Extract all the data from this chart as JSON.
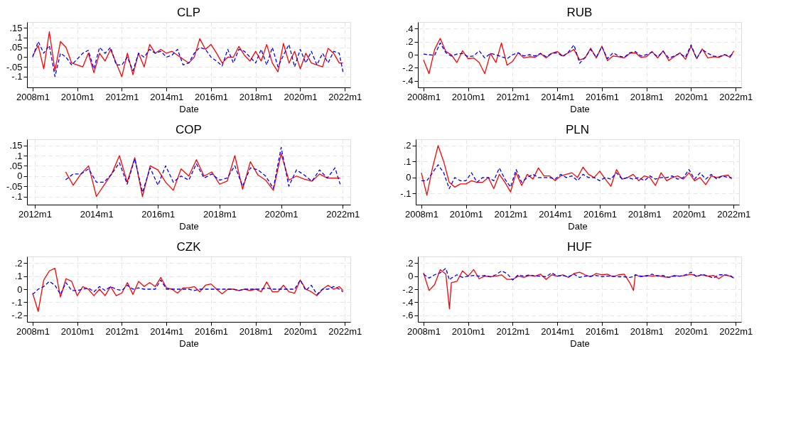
{
  "chart_data": [
    {
      "type": "line",
      "title": "CLP",
      "xlabel": "Date",
      "x": [
        "2008-01",
        "2008-04",
        "2008-07",
        "2008-10",
        "2009-01",
        "2009-04",
        "2009-07",
        "2009-10",
        "2010-01",
        "2010-04",
        "2010-07",
        "2010-10",
        "2011-01",
        "2011-04",
        "2011-07",
        "2011-10",
        "2012-01",
        "2012-04",
        "2012-07",
        "2012-10",
        "2013-01",
        "2013-04",
        "2013-07",
        "2013-10",
        "2014-01",
        "2014-04",
        "2014-07",
        "2014-10",
        "2015-01",
        "2015-04",
        "2015-07",
        "2015-10",
        "2016-01",
        "2016-04",
        "2016-07",
        "2016-10",
        "2017-01",
        "2017-04",
        "2017-07",
        "2017-10",
        "2018-01",
        "2018-04",
        "2018-07",
        "2018-10",
        "2019-01",
        "2019-04",
        "2019-07",
        "2019-10",
        "2020-01",
        "2020-04",
        "2020-07",
        "2020-10",
        "2021-01",
        "2021-04",
        "2021-07",
        "2021-10",
        "2021-12"
      ],
      "series": [
        {
          "color": "#ff0000",
          "line_style": "solid",
          "values": [
            0.005,
            0.06,
            -0.06,
            0.13,
            -0.07,
            0.08,
            0.05,
            -0.03,
            -0.04,
            -0.05,
            0.02,
            -0.08,
            0.02,
            -0.02,
            0.04,
            -0.03,
            -0.1,
            0.02,
            -0.09,
            0.02,
            -0.05,
            0.065,
            0.02,
            0.04,
            0.02,
            0.03,
            0.01,
            -0.01,
            -0.03,
            0.0,
            0.095,
            0.04,
            0.065,
            0.02,
            -0.03,
            0.0,
            0.0,
            0.055,
            0.01,
            -0.02,
            0.03,
            -0.02,
            0.065,
            -0.03,
            -0.075,
            0.07,
            -0.03,
            0.03,
            -0.06,
            0.02,
            -0.03,
            -0.04,
            -0.05,
            0.045,
            0.02,
            -0.03,
            -0.03
          ]
        },
        {
          "color": "#0000ff",
          "line_style": "dashed",
          "values": [
            0.0,
            0.08,
            0.02,
            0.06,
            -0.1,
            0.02,
            0.0,
            -0.04,
            -0.01,
            0.02,
            0.035,
            -0.06,
            0.05,
            0.02,
            0.05,
            -0.04,
            -0.04,
            0.0,
            -0.07,
            0.02,
            0.0,
            0.04,
            0.02,
            0.03,
            0.0,
            0.01,
            0.04,
            -0.04,
            -0.03,
            0.02,
            0.05,
            0.04,
            0.0,
            -0.02,
            -0.045,
            0.04,
            -0.03,
            0.04,
            0.03,
            0.0,
            -0.03,
            0.04,
            -0.04,
            0.05,
            -0.05,
            0.01,
            0.065,
            -0.05,
            0.04,
            -0.03,
            0.03,
            -0.04,
            0.02,
            -0.03,
            0.03,
            0.02,
            -0.075
          ]
        }
      ],
      "xlim": [
        "2007-10",
        "2022-04"
      ],
      "ylim": [
        -0.155,
        0.18
      ],
      "xticks": [
        {
          "value": "2008-01",
          "label": "2008m1"
        },
        {
          "value": "2010-01",
          "label": "2010m1"
        },
        {
          "value": "2012-01",
          "label": "2012m1"
        },
        {
          "value": "2014-01",
          "label": "2014m1"
        },
        {
          "value": "2016-01",
          "label": "2016m1"
        },
        {
          "value": "2018-01",
          "label": "2018m1"
        },
        {
          "value": "2020-01",
          "label": "2020m1"
        },
        {
          "value": "2022-01",
          "label": "2022m1"
        }
      ],
      "yticks": [
        {
          "value": -0.1,
          "label": "-.1"
        },
        {
          "value": -0.05,
          "label": "-.05"
        },
        0,
        {
          "value": 0.05,
          "label": ".05"
        },
        {
          "value": 0.1,
          "label": ".1"
        },
        {
          "value": 0.15,
          "label": ".15"
        }
      ],
      "grid": true
    },
    {
      "type": "line",
      "title": "RUB",
      "xlabel": "Date",
      "x": [
        "2008-01",
        "2008-04",
        "2008-07",
        "2008-10",
        "2009-01",
        "2009-04",
        "2009-07",
        "2009-10",
        "2010-01",
        "2010-04",
        "2010-07",
        "2010-10",
        "2011-01",
        "2011-04",
        "2011-07",
        "2011-10",
        "2012-01",
        "2012-04",
        "2012-07",
        "2012-10",
        "2013-01",
        "2013-04",
        "2013-07",
        "2013-10",
        "2014-01",
        "2014-04",
        "2014-07",
        "2014-10",
        "2015-01",
        "2015-04",
        "2015-07",
        "2015-10",
        "2016-01",
        "2016-04",
        "2016-07",
        "2016-10",
        "2017-01",
        "2017-04",
        "2017-07",
        "2017-10",
        "2018-01",
        "2018-04",
        "2018-07",
        "2018-10",
        "2019-01",
        "2019-04",
        "2019-07",
        "2019-10",
        "2020-01",
        "2020-04",
        "2020-07",
        "2020-10",
        "2021-01",
        "2021-04",
        "2021-07",
        "2021-10",
        "2021-12"
      ],
      "series": [
        {
          "color": "#ff0000",
          "line_style": "solid",
          "values": [
            -0.08,
            -0.29,
            0.08,
            0.25,
            0.05,
            0.0,
            -0.12,
            0.06,
            -0.06,
            -0.05,
            -0.12,
            -0.29,
            0.02,
            -0.12,
            0.18,
            -0.16,
            -0.1,
            0.03,
            -0.05,
            -0.03,
            -0.04,
            0.02,
            -0.05,
            0.02,
            0.05,
            -0.02,
            0.03,
            0.08,
            -0.08,
            -0.05,
            0.1,
            -0.05,
            0.13,
            -0.09,
            -0.02,
            -0.03,
            -0.05,
            0.02,
            0.03,
            -0.04,
            -0.03,
            0.05,
            -0.05,
            0.06,
            -0.09,
            -0.03,
            0.03,
            -0.07,
            0.13,
            -0.06,
            0.09,
            -0.05,
            -0.03,
            -0.04,
            0.0,
            -0.04,
            0.06
          ]
        },
        {
          "color": "#0000ff",
          "line_style": "dashed",
          "values": [
            0.01,
            0.0,
            -0.01,
            0.18,
            0.03,
            -0.02,
            0.01,
            0.02,
            -0.03,
            -0.02,
            0.06,
            -0.05,
            0.02,
            0.0,
            -0.03,
            -0.06,
            0.0,
            0.03,
            -0.02,
            0.0,
            -0.02,
            0.02,
            -0.03,
            0.02,
            0.03,
            -0.03,
            0.04,
            0.15,
            -0.13,
            -0.04,
            0.08,
            -0.04,
            0.12,
            -0.06,
            0.03,
            -0.02,
            -0.04,
            0.03,
            0.05,
            -0.02,
            0.0,
            0.04,
            -0.03,
            0.05,
            -0.05,
            -0.02,
            0.02,
            -0.04,
            0.15,
            -0.06,
            0.08,
            0.02,
            -0.02,
            -0.03,
            0.0,
            -0.02,
            0.03
          ]
        }
      ],
      "xlim": [
        "2007-10",
        "2022-04"
      ],
      "ylim": [
        -0.5,
        0.5
      ],
      "xticks": [
        {
          "value": "2008-01",
          "label": "2008m1"
        },
        {
          "value": "2010-01",
          "label": "2010m1"
        },
        {
          "value": "2012-01",
          "label": "2012m1"
        },
        {
          "value": "2014-01",
          "label": "2014m1"
        },
        {
          "value": "2016-01",
          "label": "2016m1"
        },
        {
          "value": "2018-01",
          "label": "2018m1"
        },
        {
          "value": "2020-01",
          "label": "2020m1"
        },
        {
          "value": "2022-01",
          "label": "2022m1"
        }
      ],
      "yticks": [
        {
          "value": -0.4,
          "label": "-.4"
        },
        {
          "value": -0.2,
          "label": "-.2"
        },
        0,
        {
          "value": 0.2,
          "label": ".2"
        },
        {
          "value": 0.4,
          "label": ".4"
        }
      ],
      "grid": true
    },
    {
      "type": "line",
      "title": "COP",
      "xlabel": "Date",
      "x": [
        "2013-01",
        "2013-04",
        "2013-07",
        "2013-10",
        "2014-01",
        "2014-04",
        "2014-07",
        "2014-10",
        "2015-01",
        "2015-04",
        "2015-07",
        "2015-10",
        "2016-01",
        "2016-04",
        "2016-07",
        "2016-10",
        "2017-01",
        "2017-04",
        "2017-07",
        "2017-10",
        "2018-01",
        "2018-04",
        "2018-07",
        "2018-10",
        "2019-01",
        "2019-04",
        "2019-07",
        "2019-10",
        "2020-01",
        "2020-04",
        "2020-07",
        "2020-10",
        "2021-01",
        "2021-04",
        "2021-07",
        "2021-10",
        "2021-12"
      ],
      "series": [
        {
          "color": "#ff0000",
          "line_style": "solid",
          "values": [
            0.02,
            -0.045,
            0.01,
            0.05,
            -0.1,
            -0.045,
            0.01,
            0.1,
            -0.03,
            0.09,
            -0.1,
            0.05,
            0.03,
            -0.03,
            -0.07,
            0.035,
            0.0,
            0.08,
            0.0,
            0.02,
            -0.04,
            -0.025,
            0.1,
            -0.065,
            0.07,
            0.005,
            -0.02,
            -0.07,
            0.11,
            -0.02,
            0.0,
            -0.015,
            -0.025,
            0.01,
            -0.01,
            -0.01,
            -0.01
          ]
        },
        {
          "color": "#0000ff",
          "line_style": "dashed",
          "values": [
            -0.018,
            0.01,
            0.01,
            0.035,
            -0.03,
            -0.03,
            0.01,
            0.065,
            -0.04,
            0.085,
            -0.08,
            0.04,
            -0.045,
            0.05,
            -0.03,
            0.0,
            -0.02,
            0.06,
            -0.01,
            0.01,
            -0.02,
            -0.01,
            0.05,
            -0.05,
            0.04,
            0.03,
            0.0,
            -0.06,
            0.14,
            -0.05,
            0.03,
            0.005,
            -0.025,
            0.03,
            -0.01,
            0.04,
            -0.04
          ]
        }
      ],
      "xlim": [
        "2011-10",
        "2022-04"
      ],
      "ylim": [
        -0.14,
        0.18
      ],
      "xticks": [
        {
          "value": "2012-01",
          "label": "2012m1"
        },
        {
          "value": "2014-01",
          "label": "2014m1"
        },
        {
          "value": "2016-01",
          "label": "2016m1"
        },
        {
          "value": "2018-01",
          "label": "2018m1"
        },
        {
          "value": "2020-01",
          "label": "2020m1"
        },
        {
          "value": "2022-01",
          "label": "2022m1"
        }
      ],
      "yticks": [
        {
          "value": -0.1,
          "label": "-.1"
        },
        {
          "value": -0.05,
          "label": "-.05"
        },
        0,
        {
          "value": 0.05,
          "label": ".05"
        },
        {
          "value": 0.1,
          "label": ".1"
        },
        {
          "value": 0.15,
          "label": ".15"
        }
      ],
      "grid": true
    },
    {
      "type": "line",
      "title": "PLN",
      "xlabel": "Date",
      "x": [
        "2008-01",
        "2008-04",
        "2008-07",
        "2008-10",
        "2009-01",
        "2009-04",
        "2009-07",
        "2009-10",
        "2010-01",
        "2010-04",
        "2010-07",
        "2010-10",
        "2011-01",
        "2011-04",
        "2011-07",
        "2011-10",
        "2012-01",
        "2012-04",
        "2012-07",
        "2012-10",
        "2013-01",
        "2013-04",
        "2013-07",
        "2013-10",
        "2014-01",
        "2014-04",
        "2014-07",
        "2014-10",
        "2015-01",
        "2015-04",
        "2015-07",
        "2015-10",
        "2016-01",
        "2016-04",
        "2016-07",
        "2016-10",
        "2017-01",
        "2017-04",
        "2017-07",
        "2017-10",
        "2018-01",
        "2018-04",
        "2018-07",
        "2018-10",
        "2019-01",
        "2019-04",
        "2019-07",
        "2019-10",
        "2020-01",
        "2020-04",
        "2020-07",
        "2020-10",
        "2021-01",
        "2021-04",
        "2021-07",
        "2021-10",
        "2021-12"
      ],
      "series": [
        {
          "color": "#ff0000",
          "line_style": "solid",
          "values": [
            0.03,
            -0.11,
            0.06,
            0.2,
            0.1,
            -0.03,
            -0.06,
            -0.04,
            -0.04,
            -0.02,
            -0.03,
            -0.03,
            0.0,
            -0.07,
            0.02,
            -0.03,
            -0.09,
            0.03,
            -0.05,
            0.02,
            -0.01,
            0.06,
            0.01,
            0.01,
            -0.02,
            0.01,
            0.02,
            0.03,
            0.0,
            0.065,
            0.02,
            0.0,
            0.04,
            -0.01,
            -0.055,
            0.05,
            -0.01,
            0.0,
            0.02,
            -0.02,
            0.01,
            0.0,
            -0.05,
            0.03,
            -0.02,
            0.0,
            0.01,
            -0.01,
            0.03,
            -0.02,
            0.0,
            -0.045,
            0.01,
            0.0,
            0.01,
            0.015,
            -0.01
          ]
        },
        {
          "color": "#0000ff",
          "line_style": "dashed",
          "values": [
            -0.02,
            -0.02,
            0.03,
            0.08,
            0.03,
            -0.07,
            0.0,
            -0.02,
            -0.02,
            0.03,
            -0.03,
            0.0,
            0.0,
            -0.02,
            0.06,
            -0.01,
            -0.06,
            0.05,
            -0.03,
            0.0,
            0.02,
            0.0,
            0.0,
            0.0,
            -0.01,
            0.02,
            0.0,
            0.01,
            -0.02,
            0.02,
            0.0,
            0.0,
            -0.02,
            0.0,
            -0.01,
            0.03,
            -0.01,
            0.0,
            -0.01,
            0.0,
            -0.02,
            0.01,
            -0.01,
            0.0,
            0.0,
            0.01,
            -0.01,
            0.0,
            0.05,
            -0.01,
            0.03,
            -0.01,
            0.02,
            -0.01,
            0.01,
            0.0,
            0.0
          ]
        }
      ],
      "xlim": [
        "2007-10",
        "2022-04"
      ],
      "ylim": [
        -0.17,
        0.24
      ],
      "xticks": [
        {
          "value": "2008-01",
          "label": "2008m1"
        },
        {
          "value": "2010-01",
          "label": "2010m1"
        },
        {
          "value": "2012-01",
          "label": "2012m1"
        },
        {
          "value": "2014-01",
          "label": "2014m1"
        },
        {
          "value": "2016-01",
          "label": "2016m1"
        },
        {
          "value": "2018-01",
          "label": "2018m1"
        },
        {
          "value": "2020-01",
          "label": "2020m1"
        },
        {
          "value": "2022-01",
          "label": "2022m1"
        }
      ],
      "yticks": [
        {
          "value": -0.1,
          "label": "-.1"
        },
        0,
        {
          "value": 0.1,
          "label": ".1"
        },
        {
          "value": 0.2,
          "label": ".2"
        }
      ],
      "grid": true
    },
    {
      "type": "line",
      "title": "CZK",
      "xlabel": "Date",
      "x": [
        "2008-01",
        "2008-04",
        "2008-07",
        "2008-10",
        "2009-01",
        "2009-04",
        "2009-07",
        "2009-10",
        "2010-01",
        "2010-04",
        "2010-07",
        "2010-10",
        "2011-01",
        "2011-04",
        "2011-07",
        "2011-10",
        "2012-01",
        "2012-04",
        "2012-07",
        "2012-10",
        "2013-01",
        "2013-04",
        "2013-07",
        "2013-10",
        "2014-01",
        "2014-04",
        "2014-07",
        "2014-10",
        "2015-01",
        "2015-04",
        "2015-07",
        "2015-10",
        "2016-01",
        "2016-04",
        "2016-07",
        "2016-10",
        "2017-01",
        "2017-04",
        "2017-07",
        "2017-10",
        "2018-01",
        "2018-04",
        "2018-07",
        "2018-10",
        "2019-01",
        "2019-04",
        "2019-07",
        "2019-10",
        "2020-01",
        "2020-04",
        "2020-07",
        "2020-10",
        "2021-01",
        "2021-04",
        "2021-07",
        "2021-10",
        "2021-12"
      ],
      "series": [
        {
          "color": "#ff0000",
          "line_style": "solid",
          "values": [
            -0.03,
            -0.17,
            0.07,
            0.14,
            0.16,
            -0.06,
            0.08,
            0.06,
            -0.05,
            0.02,
            0.0,
            -0.05,
            0.0,
            -0.05,
            0.02,
            -0.05,
            -0.03,
            0.05,
            -0.04,
            0.06,
            0.02,
            0.05,
            0.02,
            0.09,
            0.01,
            0.0,
            -0.03,
            0.01,
            0.01,
            0.02,
            -0.02,
            0.03,
            0.04,
            0.0,
            -0.035,
            0.0,
            0.0,
            -0.01,
            0.0,
            -0.01,
            0.0,
            -0.02,
            0.055,
            -0.02,
            -0.02,
            0.03,
            -0.02,
            -0.03,
            0.07,
            0.0,
            -0.02,
            -0.05,
            0.0,
            0.03,
            0.0,
            0.02,
            -0.01
          ]
        },
        {
          "color": "#0000ff",
          "line_style": "dashed",
          "values": [
            -0.04,
            0.0,
            0.02,
            0.06,
            0.03,
            -0.04,
            0.05,
            -0.01,
            -0.01,
            0.0,
            0.01,
            -0.02,
            0.02,
            -0.01,
            0.02,
            0.0,
            -0.01,
            0.03,
            0.0,
            0.01,
            0.0,
            0.0,
            0.0,
            0.07,
            0.0,
            0.0,
            0.0,
            0.0,
            0.0,
            -0.01,
            0.0,
            0.0,
            0.0,
            0.0,
            0.0,
            0.0,
            0.0,
            -0.01,
            0.0,
            0.0,
            0.0,
            0.0,
            0.01,
            0.0,
            0.0,
            0.0,
            0.0,
            0.0,
            0.07,
            -0.01,
            0.03,
            -0.04,
            0.0,
            0.0,
            0.02,
            0.0,
            -0.02
          ]
        }
      ],
      "xlim": [
        "2007-10",
        "2022-04"
      ],
      "ylim": [
        -0.25,
        0.25
      ],
      "xticks": [
        {
          "value": "2008-01",
          "label": "2008m1"
        },
        {
          "value": "2010-01",
          "label": "2010m1"
        },
        {
          "value": "2012-01",
          "label": "2012m1"
        },
        {
          "value": "2014-01",
          "label": "2014m1"
        },
        {
          "value": "2016-01",
          "label": "2016m1"
        },
        {
          "value": "2018-01",
          "label": "2018m1"
        },
        {
          "value": "2020-01",
          "label": "2020m1"
        },
        {
          "value": "2022-01",
          "label": "2022m1"
        }
      ],
      "yticks": [
        {
          "value": -0.2,
          "label": "-.2"
        },
        {
          "value": -0.1,
          "label": "-.1"
        },
        0,
        {
          "value": 0.1,
          "label": ".1"
        },
        {
          "value": 0.2,
          "label": ".2"
        }
      ],
      "grid": true
    },
    {
      "type": "line",
      "title": "HUF",
      "xlabel": "Date",
      "x": [
        "2008-01",
        "2008-04",
        "2008-07",
        "2008-10",
        "2009-01",
        "2009-03",
        "2009-04",
        "2009-07",
        "2009-10",
        "2010-01",
        "2010-04",
        "2010-07",
        "2010-10",
        "2011-01",
        "2011-04",
        "2011-07",
        "2011-10",
        "2012-01",
        "2012-04",
        "2012-07",
        "2012-10",
        "2013-01",
        "2013-04",
        "2013-07",
        "2013-10",
        "2014-01",
        "2014-04",
        "2014-07",
        "2014-10",
        "2015-01",
        "2015-04",
        "2015-07",
        "2015-10",
        "2016-01",
        "2016-04",
        "2016-07",
        "2016-10",
        "2017-01",
        "2017-04",
        "2017-06",
        "2017-07",
        "2017-10",
        "2018-01",
        "2018-04",
        "2018-07",
        "2018-10",
        "2019-01",
        "2019-04",
        "2019-07",
        "2019-10",
        "2020-01",
        "2020-04",
        "2020-07",
        "2020-10",
        "2021-01",
        "2021-04",
        "2021-07",
        "2021-10",
        "2021-12"
      ],
      "series": [
        {
          "color": "#ff0000",
          "line_style": "solid",
          "values": [
            0.05,
            -0.22,
            -0.13,
            0.1,
            0.03,
            -0.5,
            -0.1,
            -0.08,
            0.08,
            0.0,
            0.1,
            -0.04,
            0.0,
            -0.01,
            0.0,
            0.02,
            -0.05,
            -0.05,
            0.0,
            -0.02,
            0.01,
            0.0,
            0.03,
            -0.05,
            0.02,
            0.0,
            0.02,
            -0.02,
            0.04,
            0.06,
            0.02,
            -0.01,
            0.04,
            0.02,
            0.03,
            -0.01,
            0.02,
            0.03,
            -0.1,
            -0.22,
            0.02,
            -0.01,
            0.01,
            0.0,
            0.01,
            -0.01,
            -0.02,
            0.01,
            0.0,
            0.01,
            0.03,
            0.0,
            0.02,
            0.0,
            0.01,
            -0.04,
            0.02,
            0.0,
            -0.03
          ]
        },
        {
          "color": "#0000ff",
          "line_style": "dashed",
          "values": [
            0.03,
            -0.03,
            0.02,
            0.05,
            0.12,
            -0.06,
            -0.03,
            0.02,
            -0.02,
            0.0,
            0.01,
            0.0,
            0.01,
            -0.01,
            0.02,
            0.08,
            0.04,
            -0.06,
            0.02,
            0.0,
            0.02,
            0.0,
            0.0,
            -0.01,
            0.05,
            0.0,
            0.01,
            -0.01,
            0.03,
            -0.02,
            0.0,
            0.0,
            0.01,
            -0.01,
            0.0,
            0.0,
            -0.01,
            -0.01,
            -0.02,
            -0.01,
            0.02,
            0.0,
            0.0,
            0.03,
            0.0,
            0.01,
            -0.02,
            0.0,
            0.0,
            0.02,
            0.06,
            -0.01,
            0.03,
            0.0,
            -0.03,
            0.02,
            0.02,
            0.01,
            -0.03
          ]
        }
      ],
      "xlim": [
        "2007-10",
        "2022-04"
      ],
      "ylim": [
        -0.7,
        0.3
      ],
      "xticks": [
        {
          "value": "2008-01",
          "label": "2008m1"
        },
        {
          "value": "2010-01",
          "label": "2010m1"
        },
        {
          "value": "2012-01",
          "label": "2012m1"
        },
        {
          "value": "2014-01",
          "label": "2014m1"
        },
        {
          "value": "2016-01",
          "label": "2016m1"
        },
        {
          "value": "2018-01",
          "label": "2018m1"
        },
        {
          "value": "2020-01",
          "label": "2020m1"
        },
        {
          "value": "2022-01",
          "label": "2022m1"
        }
      ],
      "yticks": [
        {
          "value": -0.6,
          "label": "-.6"
        },
        {
          "value": -0.4,
          "label": "-.4"
        },
        {
          "value": -0.2,
          "label": "-.2"
        },
        0,
        {
          "value": 0.2,
          "label": ".2"
        }
      ],
      "grid": true
    }
  ]
}
